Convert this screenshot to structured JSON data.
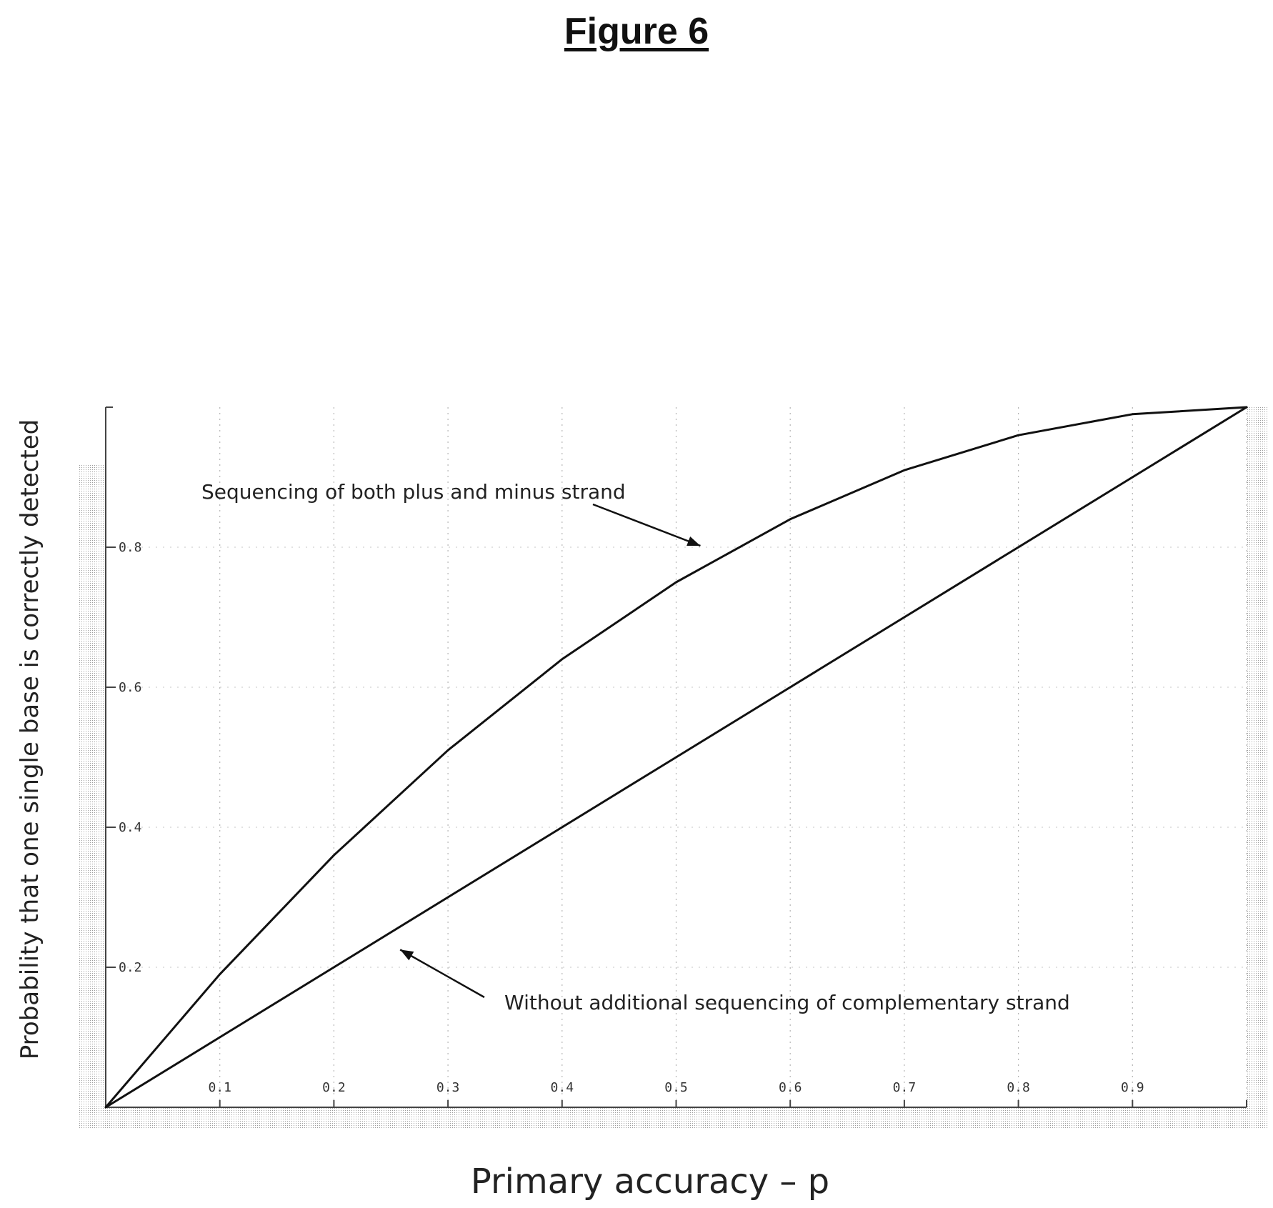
{
  "figure": {
    "title": "Figure 6"
  },
  "chart_data": {
    "type": "line",
    "title": "Figure 6",
    "xlabel": "Primary accuracy – p",
    "ylabel": "Probability that one single base is correctly detected",
    "xlim": [
      0,
      1
    ],
    "ylim": [
      0,
      1
    ],
    "grid": true,
    "x_ticks": [
      "0.1",
      "0.2",
      "0.3",
      "0.4",
      "0.5",
      "0.6",
      "0.7",
      "0.8",
      "0.9"
    ],
    "y_ticks": [
      "0.2",
      "0.4",
      "0.6",
      "0.8"
    ],
    "series": [
      {
        "x": [
          0,
          0.1,
          0.2,
          0.3,
          0.4,
          0.5,
          0.6,
          0.7,
          0.8,
          0.9,
          1.0
        ],
        "y": [
          0,
          0.19,
          0.36,
          0.51,
          0.64,
          0.75,
          0.84,
          0.91,
          0.96,
          0.99,
          1.0
        ]
      },
      {
        "x": [
          0,
          0.1,
          0.2,
          0.3,
          0.4,
          0.5,
          0.6,
          0.7,
          0.8,
          0.9,
          1.0
        ],
        "y": [
          0,
          0.1,
          0.2,
          0.3,
          0.4,
          0.5,
          0.6,
          0.7,
          0.8,
          0.9,
          1.0
        ]
      }
    ],
    "annotations": [
      {
        "text": "Sequencing of both plus and minus strand",
        "points_to": [
          0.52,
          0.8
        ]
      },
      {
        "text": "Without additional sequencing of complementary strand",
        "points_to": [
          0.26,
          0.22
        ]
      }
    ]
  }
}
